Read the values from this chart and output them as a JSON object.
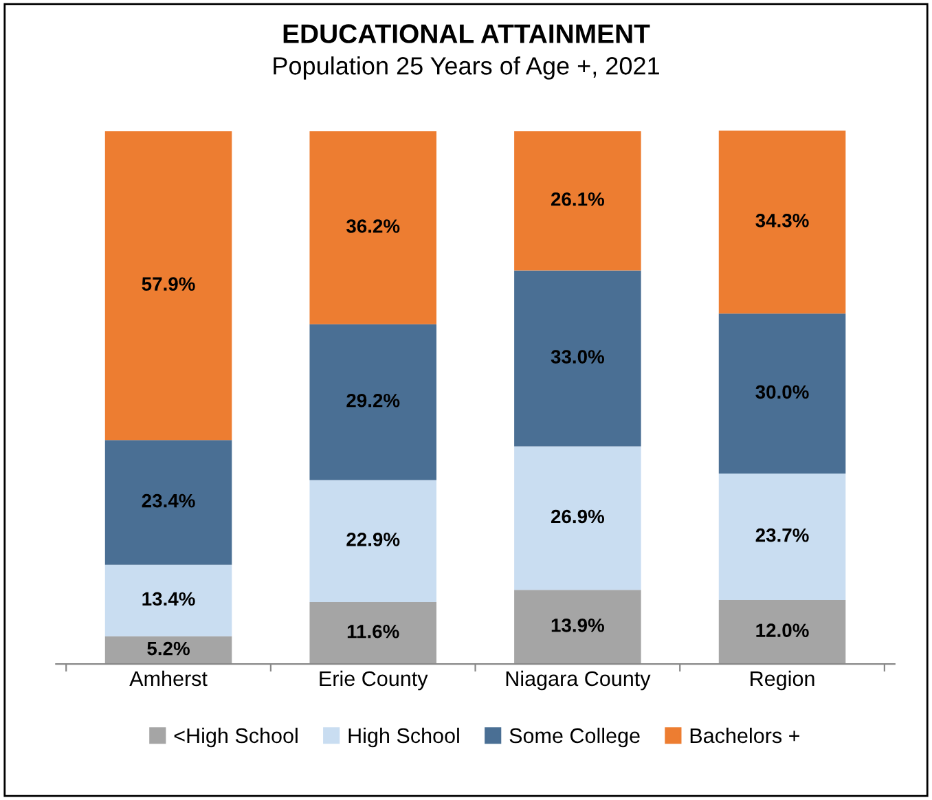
{
  "chart_data": {
    "type": "bar",
    "stacked": true,
    "title": "EDUCATIONAL ATTAINMENT",
    "subtitle": "Population 25 Years of Age +, 2021",
    "categories": [
      "Amherst",
      "Erie County",
      "Niagara County",
      "Region"
    ],
    "series": [
      {
        "name": "<High School",
        "color": "#a5a5a5",
        "values": [
          5.2,
          11.6,
          13.9,
          12.0
        ],
        "value_labels": [
          "5.2%",
          "11.6%",
          "13.9%",
          "12.0%"
        ]
      },
      {
        "name": "High School",
        "color": "#c9ddf1",
        "values": [
          13.4,
          22.9,
          26.9,
          23.7
        ],
        "value_labels": [
          "13.4%",
          "22.9%",
          "26.9%",
          "23.7%"
        ]
      },
      {
        "name": "Some College",
        "color": "#4a6f94",
        "values": [
          23.4,
          29.2,
          33.0,
          30.0
        ],
        "value_labels": [
          "23.4%",
          "29.2%",
          "33.0%",
          "30.0%"
        ]
      },
      {
        "name": "Bachelors +",
        "color": "#ed7d31",
        "values": [
          57.9,
          36.2,
          26.1,
          34.3
        ],
        "value_labels": [
          "57.9%",
          "36.2%",
          "26.1%",
          "34.3%"
        ]
      }
    ],
    "legend": "bottom",
    "grid": false,
    "tick_labels": "x"
  }
}
